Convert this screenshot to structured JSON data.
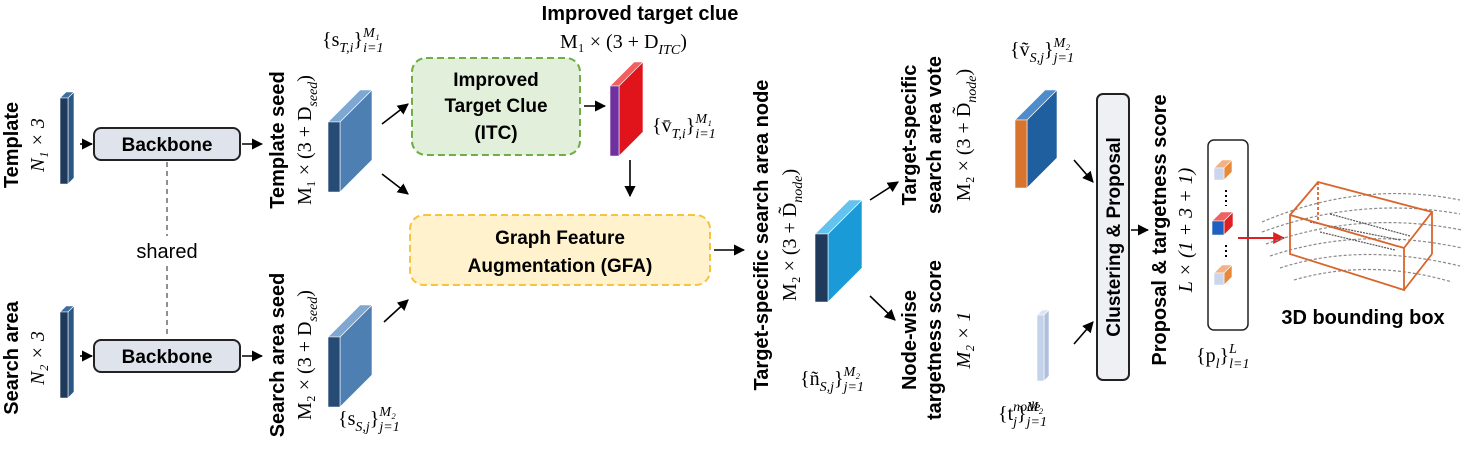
{
  "template": {
    "label": "Template",
    "dims": "N₁ × 3"
  },
  "search_area": {
    "label": "Search area",
    "dims": "N₂ × 3"
  },
  "backbones": [
    "Backbone",
    "Backbone"
  ],
  "shared": "shared",
  "template_seed": {
    "label": "Template seed",
    "dims": [
      {
        "text": "M₁ × (3 + D"
      },
      {
        "sub": "seed"
      },
      {
        "text": ")"
      }
    ],
    "set": [
      {
        "text": "{s"
      },
      {
        "sub": "T,i"
      },
      {
        "text": "}"
      },
      {
        "sup": "M₁"
      },
      {
        "sub": "i=1"
      }
    ]
  },
  "search_area_seed": {
    "label": "Search area seed",
    "dims": [
      {
        "text": "M₂ × (3 + D"
      },
      {
        "sub": "seed"
      },
      {
        "text": ")"
      }
    ],
    "set": [
      {
        "text": "{s"
      },
      {
        "sub": "S,j"
      },
      {
        "text": "}"
      },
      {
        "sup": "M₂"
      },
      {
        "sub": "j=1"
      }
    ]
  },
  "itc_box": {
    "lines": [
      "Improved",
      "Target Clue",
      "(ITC)"
    ]
  },
  "improved_target_clue": {
    "label": "Improved target clue",
    "dims": [
      {
        "text": "M₁ × (3 + D"
      },
      {
        "sub": "ITC"
      },
      {
        "text": ")"
      }
    ],
    "set": [
      {
        "text": "{v̄"
      },
      {
        "sub": "T,i"
      },
      {
        "text": "}"
      },
      {
        "sup": "M₁"
      },
      {
        "sub": "i=1"
      }
    ]
  },
  "gfa_box": {
    "lines": [
      "Graph Feature",
      "Augmentation (GFA)"
    ]
  },
  "search_area_node": {
    "label": "Target-specific search area node",
    "dims": [
      {
        "text": "M₂ × (3 + D̃"
      },
      {
        "sub": "node"
      },
      {
        "text": ")"
      }
    ],
    "set": [
      {
        "text": "{ñ"
      },
      {
        "sub": "S,j"
      },
      {
        "text": "}"
      },
      {
        "sup": "M₂"
      },
      {
        "sub": "j=1"
      }
    ]
  },
  "search_area_vote": {
    "lines": [
      "Target-specific",
      "search area vote"
    ],
    "dims": [
      {
        "text": "M₂ × (3 + D̃"
      },
      {
        "sub": "node"
      },
      {
        "text": ")"
      }
    ],
    "set": [
      {
        "text": "{ṽ"
      },
      {
        "sub": "S,j"
      },
      {
        "text": "}"
      },
      {
        "sup": "M₂"
      },
      {
        "sub": "j=1"
      }
    ]
  },
  "targetness_score": {
    "lines": [
      "Node-wise",
      "targetness score"
    ],
    "dims": "M₂ × 1",
    "set": [
      {
        "text": "{t"
      },
      {
        "sup": "node"
      },
      {
        "sub": "j"
      },
      {
        "text": "}"
      },
      {
        "sup": "M₂"
      },
      {
        "sub": "j=1"
      }
    ]
  },
  "clustering_box": "Clustering & Proposal",
  "proposal": {
    "label": "Proposal & targetness score",
    "dims": "L × (1 + 3 + 1)",
    "set": [
      {
        "text": "{p"
      },
      {
        "sub": "l"
      },
      {
        "text": "}"
      },
      {
        "sup": "L"
      },
      {
        "sub": "l=1"
      }
    ]
  },
  "output": "3D bounding box"
}
